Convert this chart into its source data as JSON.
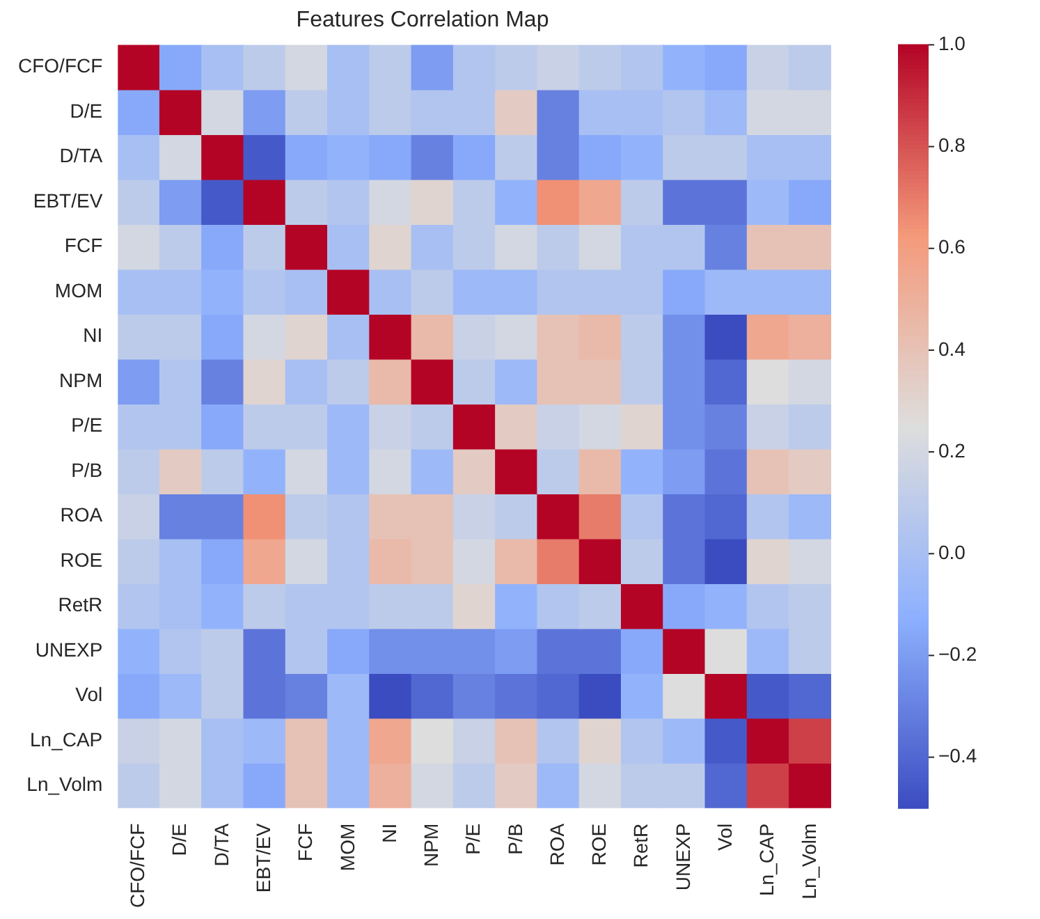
{
  "chart_data": {
    "type": "heatmap",
    "title": "Features Correlation Map",
    "categories": [
      "CFO/FCF",
      "D/E",
      "D/TA",
      "EBT/EV",
      "FCF",
      "MOM",
      "NI",
      "NPM",
      "P/E",
      "P/B",
      "ROA",
      "ROE",
      "RetR",
      "UNEXP",
      "Vol",
      "Ln_CAP",
      "Ln_Volm"
    ],
    "y_categories": [
      "CFO/FCF",
      "D/E",
      "D/TA",
      "EBT/EV",
      "FCF",
      "MOM",
      "NI",
      "NPM",
      "P/E",
      "P/B",
      "ROA",
      "ROE",
      "RetR",
      "UNEXP",
      "Vol",
      "Ln_CAP",
      "Ln_Volm"
    ],
    "cells": [
      [
        1,
        -0.15,
        0.0,
        0.1,
        0.2,
        0.0,
        0.1,
        -0.2,
        0.05,
        0.1,
        0.15,
        0.1,
        0.05,
        -0.1,
        -0.15,
        0.15,
        0.1
      ],
      [
        -0.15,
        1,
        0.2,
        -0.2,
        0.1,
        0.0,
        0.1,
        0.05,
        0.05,
        0.35,
        -0.3,
        0.0,
        0.0,
        0.05,
        -0.05,
        0.2,
        0.2
      ],
      [
        0.0,
        0.2,
        1,
        -0.45,
        -0.15,
        -0.1,
        -0.15,
        -0.3,
        -0.15,
        0.1,
        -0.3,
        -0.15,
        -0.1,
        0.1,
        0.1,
        0.0,
        0.0
      ],
      [
        0.1,
        -0.2,
        -0.45,
        1,
        0.1,
        0.05,
        0.2,
        0.3,
        0.1,
        -0.1,
        0.65,
        0.55,
        0.1,
        -0.35,
        -0.35,
        -0.05,
        -0.15
      ],
      [
        0.2,
        0.1,
        -0.15,
        0.1,
        1,
        0.0,
        0.3,
        0.0,
        0.1,
        0.2,
        0.1,
        0.2,
        0.05,
        0.05,
        -0.3,
        0.4,
        0.4
      ],
      [
        0.0,
        0.0,
        -0.1,
        0.05,
        0.0,
        1,
        0.0,
        0.1,
        -0.05,
        -0.05,
        0.05,
        0.05,
        0.05,
        -0.15,
        -0.05,
        -0.05,
        -0.05
      ],
      [
        0.1,
        0.1,
        -0.15,
        0.2,
        0.3,
        0.0,
        1,
        0.45,
        0.15,
        0.2,
        0.4,
        0.45,
        0.1,
        -0.25,
        -0.5,
        0.55,
        0.5
      ],
      [
        -0.2,
        0.05,
        -0.3,
        0.3,
        0.0,
        0.1,
        0.45,
        1,
        0.1,
        -0.05,
        0.4,
        0.4,
        0.1,
        -0.25,
        -0.4,
        0.25,
        0.2
      ],
      [
        0.05,
        0.05,
        -0.15,
        0.1,
        0.1,
        -0.05,
        0.15,
        0.1,
        1,
        0.35,
        0.15,
        0.2,
        0.3,
        -0.25,
        -0.3,
        0.15,
        0.1
      ],
      [
        0.1,
        0.35,
        0.1,
        -0.1,
        0.2,
        -0.05,
        0.2,
        -0.05,
        0.35,
        1,
        0.1,
        0.45,
        -0.1,
        -0.2,
        -0.35,
        0.4,
        0.35
      ],
      [
        0.15,
        -0.3,
        -0.3,
        0.65,
        0.1,
        0.05,
        0.4,
        0.4,
        0.15,
        0.1,
        1,
        0.7,
        0.05,
        -0.35,
        -0.4,
        0.05,
        -0.05
      ],
      [
        0.1,
        0.0,
        -0.15,
        0.55,
        0.2,
        0.05,
        0.45,
        0.4,
        0.2,
        0.45,
        0.7,
        1,
        0.1,
        -0.35,
        -0.5,
        0.3,
        0.2
      ],
      [
        0.05,
        0.0,
        -0.1,
        0.1,
        0.05,
        0.05,
        0.1,
        0.1,
        0.3,
        -0.1,
        0.05,
        0.1,
        1,
        -0.15,
        -0.1,
        0.05,
        0.1
      ],
      [
        -0.1,
        0.05,
        0.1,
        -0.35,
        0.05,
        -0.15,
        -0.25,
        -0.25,
        -0.25,
        -0.2,
        -0.35,
        -0.35,
        -0.15,
        1,
        0.25,
        -0.05,
        0.1
      ],
      [
        -0.15,
        -0.05,
        0.1,
        -0.35,
        -0.3,
        -0.05,
        -0.5,
        -0.4,
        -0.3,
        -0.35,
        -0.4,
        -0.5,
        -0.1,
        0.25,
        1,
        -0.45,
        -0.4
      ],
      [
        0.15,
        0.2,
        0.0,
        -0.05,
        0.4,
        -0.05,
        0.55,
        0.25,
        0.15,
        0.4,
        0.05,
        0.3,
        0.05,
        -0.05,
        -0.45,
        1,
        0.85
      ],
      [
        0.1,
        0.2,
        0.0,
        -0.15,
        0.4,
        -0.05,
        0.5,
        0.2,
        0.1,
        0.35,
        -0.05,
        0.2,
        0.1,
        0.1,
        -0.4,
        0.85,
        1
      ]
    ],
    "clim": [
      -0.5,
      1.0
    ],
    "cticks": [
      {
        "value": -0.4,
        "label": "−0.4"
      },
      {
        "value": -0.2,
        "label": "−0.2"
      },
      {
        "value": 0,
        "label": "0.0"
      },
      {
        "value": 0.2,
        "label": "0.2"
      },
      {
        "value": 0.4,
        "label": "0.4"
      },
      {
        "value": 0.6,
        "label": "0.6"
      },
      {
        "value": 0.8,
        "label": "0.8"
      },
      {
        "value": 1.0,
        "label": "1.0"
      }
    ]
  }
}
